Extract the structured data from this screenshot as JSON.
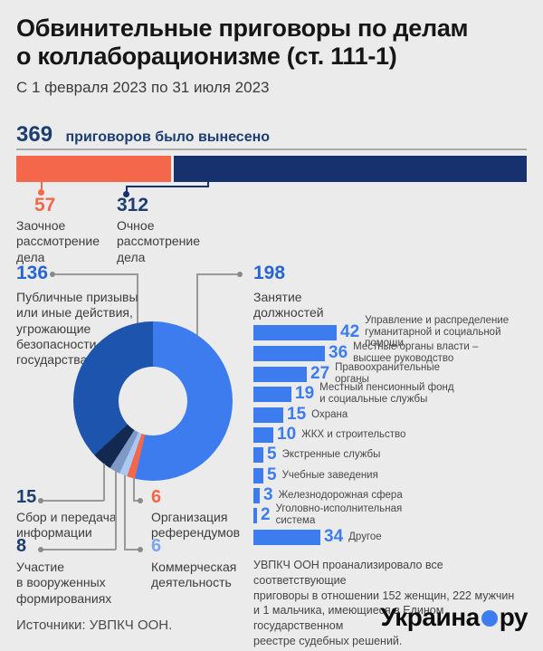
{
  "header": {
    "title": "Обвинительные приговоры по делам\nо коллаборационизме (ст. 111-1)",
    "subtitle": "С 1 февраля 2023 по 31 июля 2023"
  },
  "total": {
    "value": "369",
    "label": "приговоров было вынесено"
  },
  "split_bar": {
    "in_absentia": {
      "value": "57",
      "label": "Заочное\nрассмотрение\nдела",
      "color": "#f4674a"
    },
    "in_person": {
      "value": "312",
      "label": "Очное\nрассмотрение\nдела",
      "color": "#16316d"
    }
  },
  "donut": {
    "slices": [
      {
        "value": 198,
        "color": "#3c7cef",
        "label": "Занятие\nдолжностей"
      },
      {
        "value": 6,
        "color": "#f4674a",
        "label": "Организация\nреферендумов"
      },
      {
        "value": 6,
        "color": "#aac8f2",
        "label": "Коммерческая\nдеятельность"
      },
      {
        "value": 8,
        "color": "#7e99c6",
        "label": "Участие\nв вооруженных\nформированиях"
      },
      {
        "value": 15,
        "color": "#13294f",
        "label": "Сбор и передача\nинформации"
      },
      {
        "value": 136,
        "color": "#1d54ae",
        "label": "Публичные призывы\nили иные действия,\nугрожающие\nбезопасности\nгосударства"
      }
    ]
  },
  "jobs_breakdown": {
    "bar_color": "#3c7cef",
    "rows": [
      {
        "value": 42,
        "label": "Управление и распределение\nгуманитарной и социальной помощи"
      },
      {
        "value": 36,
        "label": "Местные органы власти –\nвысшее руководство"
      },
      {
        "value": 27,
        "label": "Правоохранительные\nорганы"
      },
      {
        "value": 19,
        "label": "Местный пенсионный фонд\nи социальные службы"
      },
      {
        "value": 15,
        "label": "Охрана"
      },
      {
        "value": 10,
        "label": "ЖКХ и строительство"
      },
      {
        "value": 5,
        "label": "Экстренные службы"
      },
      {
        "value": 5,
        "label": "Учебные заведения"
      },
      {
        "value": 3,
        "label": "Железнодорожная сфера"
      },
      {
        "value": 2,
        "label": "Уголовно-исполнительная\nсистема"
      },
      {
        "value": 34,
        "label": "Другое"
      }
    ]
  },
  "note": "УВПКЧ ООН проанализировало все соответствующие\nприговоры в отношении 152 женщин, 222 мужчин\nи 1 мальчика, имеющиеся в Едином государственном\nреестре судебных решений.",
  "source": "Источники: УВПКЧ ООН.",
  "logo": {
    "text1": "Украина",
    "text2": "ру",
    "dot_color": "#3c7cef"
  },
  "chart_data": [
    {
      "type": "bar",
      "subtype": "stacked-horizontal",
      "title": "369 приговоров было вынесено",
      "categories": [
        "Заочное рассмотрение дела",
        "Очное рассмотрение дела"
      ],
      "values": [
        57,
        312
      ],
      "colors": [
        "#f4674a",
        "#16316d"
      ],
      "total": 369
    },
    {
      "type": "pie",
      "subtype": "donut",
      "categories": [
        "Занятие должностей",
        "Организация референдумов",
        "Коммерческая деятельность",
        "Участие в вооруженных формированиях",
        "Сбор и передача информации",
        "Публичные призывы или иные действия, угрожающие безопасности государства"
      ],
      "values": [
        198,
        6,
        6,
        8,
        15,
        136
      ],
      "colors": [
        "#3c7cef",
        "#f4674a",
        "#aac8f2",
        "#7e99c6",
        "#13294f",
        "#1d54ae"
      ],
      "total": 369
    },
    {
      "type": "bar",
      "subtype": "horizontal",
      "title": "Занятие должностей (198)",
      "categories": [
        "Управление и распределение гуманитарной и социальной помощи",
        "Местные органы власти – высшее руководство",
        "Правоохранительные органы",
        "Местный пенсионный фонд и социальные службы",
        "Охрана",
        "ЖКХ и строительство",
        "Экстренные службы",
        "Учебные заведения",
        "Железнодорожная сфера",
        "Уголовно-исполнительная система",
        "Другое"
      ],
      "values": [
        42,
        36,
        27,
        19,
        15,
        10,
        5,
        5,
        3,
        2,
        34
      ],
      "xlim": [
        0,
        45
      ],
      "grid": false,
      "data_labels": true
    }
  ]
}
